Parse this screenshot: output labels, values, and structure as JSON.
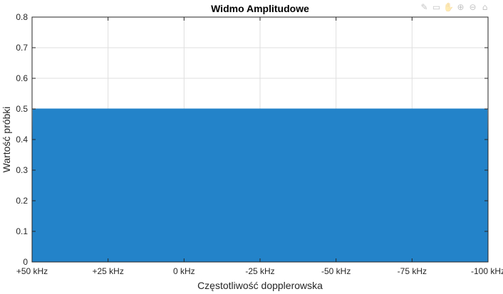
{
  "toolbar": {
    "icons": [
      "brush-icon",
      "save-icon",
      "pan-icon",
      "zoom-in-icon",
      "zoom-out-icon",
      "home-icon"
    ],
    "glyphs": [
      "✎",
      "▭",
      "✋",
      "⊕",
      "⊖",
      "⌂"
    ]
  },
  "chart_data": {
    "type": "area",
    "title": "Widmo Amplitudowe",
    "xlabel": "Częstotliwość dopplerowska",
    "ylabel": "Wartość próbki",
    "x_tick_labels": [
      "+50 kHz",
      "+25 kHz",
      "0 kHz",
      "-25 kHz",
      "-50 kHz",
      "-75 kHz",
      "-100 kHz"
    ],
    "x_tick_values": [
      50,
      25,
      0,
      -25,
      -50,
      -75,
      -100
    ],
    "xlim": [
      50,
      -100
    ],
    "ylim": [
      0,
      0.8
    ],
    "y_ticks": [
      0,
      0.1,
      0.2,
      0.3,
      0.4,
      0.5,
      0.6,
      0.7,
      0.8
    ],
    "y_tick_labels": [
      "0",
      "0.1",
      "0.2",
      "0.3",
      "0.4",
      "0.5",
      "0.6",
      "0.7",
      "0.8"
    ],
    "grid": true,
    "series": [
      {
        "color": "#2383C9",
        "x": [
          55,
          50,
          49.7,
          -99.7,
          -100,
          -105
        ],
        "y": [
          0,
          0.04,
          0.5,
          0.5,
          0.04,
          0
        ]
      }
    ]
  }
}
